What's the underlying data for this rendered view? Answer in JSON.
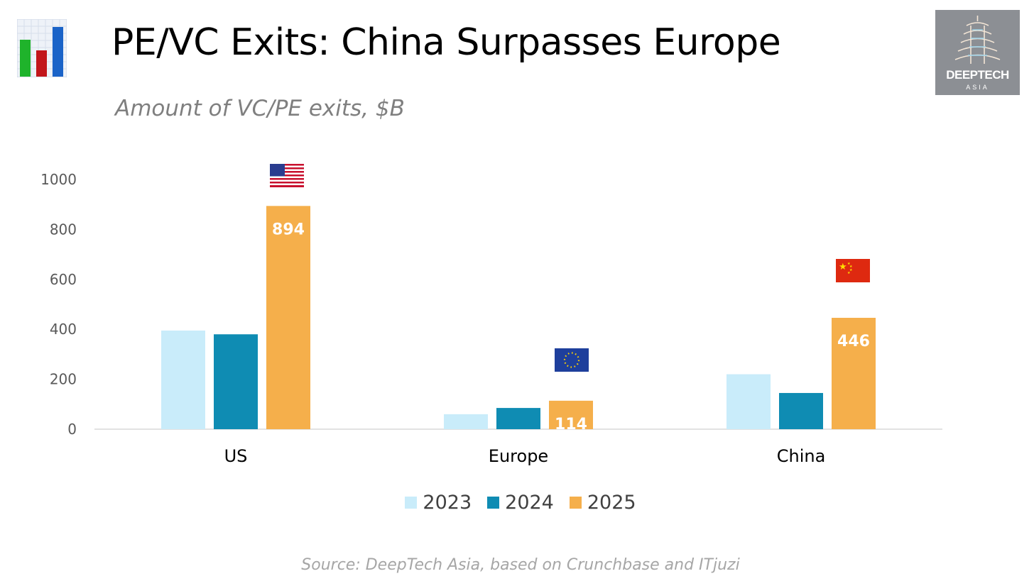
{
  "header": {
    "title": "PE/VC Exits: China Surpasses Europe",
    "subtitle": "Amount of VC/PE exits, $B",
    "source": "Source: DeepTech Asia, based on Crunchbase and ITjuzi"
  },
  "brand": {
    "name": "DEEPTECH",
    "sub": "ASIA"
  },
  "colors": {
    "y2023": "#c9ecfa",
    "y2024": "#0f8cb3",
    "y2025": "#f5af4b"
  },
  "chart_data": {
    "type": "bar",
    "title": "PE/VC Exits: China Surpasses Europe",
    "subtitle": "Amount of VC/PE exits, $B",
    "xlabel": "",
    "ylabel": "",
    "ylim": [
      0,
      1000
    ],
    "yticks": [
      0,
      200,
      400,
      600,
      800,
      1000
    ],
    "categories": [
      "US",
      "Europe",
      "China"
    ],
    "series": [
      {
        "name": "2023",
        "values": [
          395,
          60,
          220
        ]
      },
      {
        "name": "2024",
        "values": [
          380,
          85,
          145
        ]
      },
      {
        "name": "2025",
        "values": [
          894,
          114,
          446
        ]
      }
    ],
    "data_labels": {
      "series": "2025",
      "values": [
        "894",
        "114",
        "446"
      ]
    },
    "legend": "bottom-center",
    "annotations": [
      "US flag",
      "EU flag",
      "China flag"
    ]
  }
}
